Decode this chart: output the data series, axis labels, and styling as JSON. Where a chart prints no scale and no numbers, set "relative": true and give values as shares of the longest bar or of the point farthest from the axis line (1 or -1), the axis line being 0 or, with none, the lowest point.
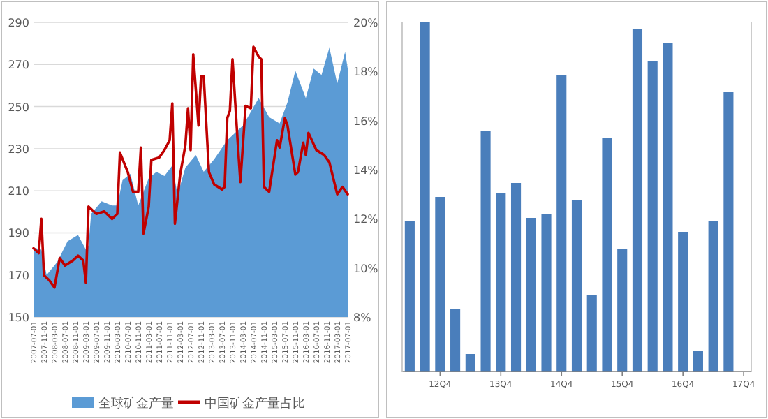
{
  "chart_data": [
    {
      "type": "area",
      "legend": "bottom",
      "grid": "y",
      "xlim": [
        "2007-07-01",
        "2017-07-01"
      ],
      "xticks": [
        "2007-07-01",
        "2007-11-01",
        "2008-03-01",
        "2008-07-01",
        "2008-11-01",
        "2009-03-01",
        "2009-07-01",
        "2009-11-01",
        "2010-03-01",
        "2010-07-01",
        "2010-11-01",
        "2011-03-01",
        "2011-07-01",
        "2011-11-01",
        "2012-03-01",
        "2012-07-01",
        "2012-11-01",
        "2013-03-01",
        "2013-07-01",
        "2013-11-01",
        "2014-03-01",
        "2014-07-01",
        "2014-11-01",
        "2015-03-01",
        "2015-07-01",
        "2015-11-01",
        "2016-03-01",
        "2016-07-01",
        "2016-11-01",
        "2017-03-01",
        "2017-07-01"
      ],
      "ylim": [
        150,
        290
      ],
      "yticks": [
        150,
        170,
        190,
        210,
        230,
        250,
        270,
        290
      ],
      "y2lim": [
        8,
        20
      ],
      "y2ticks": [
        {
          "value": 8,
          "label": "8%"
        },
        {
          "value": 10,
          "label": "10%"
        },
        {
          "value": 12,
          "label": "12%"
        },
        {
          "value": 14,
          "label": "14%"
        },
        {
          "value": 16,
          "label": "16%"
        },
        {
          "value": 18,
          "label": "18%"
        },
        {
          "value": 20,
          "label": "20%"
        }
      ],
      "series": [
        {
          "name": "全球矿金产量",
          "color": "#5b9bd5",
          "x": [
            "2007-07",
            "2007-10",
            "2007-12",
            "2008-04",
            "2008-08",
            "2008-12",
            "2009-03",
            "2009-04",
            "2009-05",
            "2009-09",
            "2010-01",
            "2010-03",
            "2010-05",
            "2010-08",
            "2010-11",
            "2011-03",
            "2011-06",
            "2011-09",
            "2011-12",
            "2012-02",
            "2012-05",
            "2012-09",
            "2012-12",
            "2013-04",
            "2013-09",
            "2014-03",
            "2014-09",
            "2015-01",
            "2015-05",
            "2015-08",
            "2015-11",
            "2016-03",
            "2016-06",
            "2016-09",
            "2016-12",
            "2017-03",
            "2017-06",
            "2017-07"
          ],
          "values": [
            183,
            182,
            170,
            176,
            186,
            189,
            182,
            184,
            199,
            205,
            203,
            203,
            215,
            218,
            203,
            216,
            219,
            217,
            222,
            208,
            221,
            227,
            219,
            225,
            234,
            241,
            254,
            245,
            242,
            252,
            267,
            254,
            268,
            265,
            278,
            261,
            276,
            268
          ]
        },
        {
          "name": "中国矿金产量占比",
          "type": "line",
          "axis": "y2",
          "color": "#c00000",
          "x": [
            "2007-07",
            "2007-09",
            "2007-10",
            "2007-11",
            "2008-01",
            "2008-03",
            "2008-05",
            "2008-07",
            "2008-10",
            "2008-12",
            "2009-02",
            "2009-03",
            "2009-04",
            "2009-07",
            "2009-10",
            "2010-01",
            "2010-03",
            "2010-04",
            "2010-07",
            "2010-09",
            "2010-11",
            "2010-12",
            "2011-01",
            "2011-03",
            "2011-04",
            "2011-07",
            "2011-09",
            "2011-11",
            "2011-12",
            "2012-01",
            "2012-03",
            "2012-05",
            "2012-06",
            "2012-07",
            "2012-08",
            "2012-10",
            "2012-11",
            "2012-12",
            "2013-02",
            "2013-04",
            "2013-07",
            "2013-08",
            "2013-09",
            "2013-10",
            "2013-11",
            "2014-01",
            "2014-02",
            "2014-04",
            "2014-06",
            "2014-07",
            "2014-09",
            "2014-10",
            "2014-11",
            "2015-01",
            "2015-04",
            "2015-05",
            "2015-07",
            "2015-08",
            "2015-11",
            "2015-12",
            "2016-02",
            "2016-03",
            "2016-04",
            "2016-07",
            "2016-10",
            "2016-12",
            "2017-03",
            "2017-05",
            "2017-07"
          ],
          "values": [
            10.8,
            10.6,
            12.0,
            9.7,
            9.5,
            9.2,
            10.4,
            10.1,
            10.3,
            10.5,
            10.3,
            9.4,
            12.5,
            12.2,
            12.3,
            12.0,
            12.2,
            14.7,
            13.9,
            13.1,
            13.1,
            14.9,
            11.4,
            12.5,
            14.4,
            14.5,
            14.8,
            15.2,
            16.7,
            11.8,
            13.8,
            15.0,
            16.5,
            14.8,
            18.7,
            15.8,
            17.8,
            17.8,
            13.9,
            13.4,
            13.2,
            13.3,
            16.1,
            16.4,
            18.5,
            15.1,
            13.5,
            16.6,
            16.5,
            19.0,
            18.6,
            18.5,
            13.3,
            13.1,
            15.2,
            14.9,
            16.1,
            15.8,
            13.8,
            13.9,
            15.1,
            14.6,
            15.5,
            14.8,
            14.6,
            14.3,
            13.0,
            13.3,
            13.0
          ]
        }
      ]
    },
    {
      "type": "bar",
      "relative": true,
      "color": "#4a7ebb",
      "categories": [
        null,
        null,
        "12Q4",
        null,
        null,
        null,
        "13Q4",
        null,
        null,
        null,
        "14Q4",
        null,
        null,
        null,
        "15Q4",
        null,
        null,
        null,
        "16Q4",
        null,
        null,
        null,
        "17Q4"
      ],
      "values": [
        0.43,
        1,
        0.5,
        0.18,
        0.05,
        0.69,
        0.51,
        0.54,
        0.44,
        0.45,
        0.85,
        0.49,
        0.22,
        0.67,
        0.35,
        0.98,
        0.89,
        0.94,
        0.4,
        0.06,
        0.43,
        0.8,
        null
      ]
    }
  ]
}
